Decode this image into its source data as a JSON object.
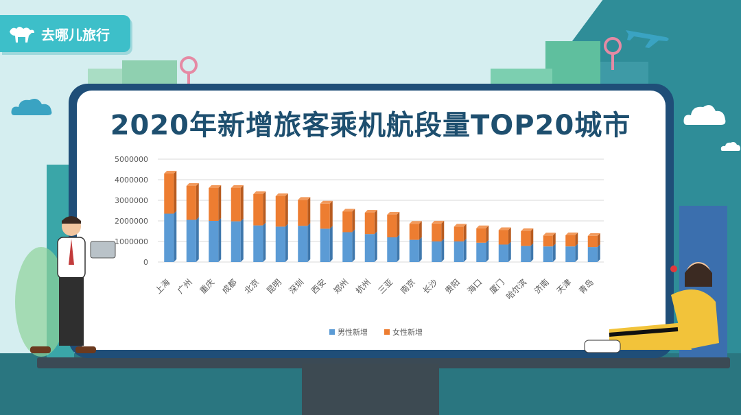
{
  "brand": {
    "logo_text": "去哪儿旅行",
    "logo_icon": "camel-icon"
  },
  "colors": {
    "male": "#5b9bd5",
    "female": "#ed7d31",
    "board": "#1f4e78",
    "title": "#1e4f6f"
  },
  "chart_data": {
    "type": "bar",
    "stacked": true,
    "title": "2020年新增旅客乘机航段量TOP20城市",
    "categories": [
      "上海",
      "广州",
      "重庆",
      "成都",
      "北京",
      "昆明",
      "深圳",
      "西安",
      "郑州",
      "杭州",
      "三亚",
      "南京",
      "长沙",
      "贵阳",
      "海口",
      "厦门",
      "哈尔滨",
      "济南",
      "天津",
      "青岛"
    ],
    "series": [
      {
        "name": "男性新增",
        "values": [
          2350000,
          2050000,
          2000000,
          1980000,
          1780000,
          1720000,
          1760000,
          1620000,
          1450000,
          1360000,
          1200000,
          1080000,
          1000000,
          1000000,
          940000,
          850000,
          780000,
          760000,
          760000,
          730000
        ]
      },
      {
        "name": "女性新增",
        "values": [
          1950000,
          1650000,
          1600000,
          1620000,
          1520000,
          1480000,
          1260000,
          1220000,
          1000000,
          1040000,
          1100000,
          780000,
          870000,
          720000,
          700000,
          700000,
          720000,
          530000,
          540000,
          540000
        ]
      }
    ],
    "yticks": [
      "0",
      "1000000",
      "2000000",
      "3000000",
      "4000000",
      "5000000"
    ],
    "ylim": [
      0,
      5000000
    ],
    "legend_position": "bottom",
    "grid": true
  }
}
